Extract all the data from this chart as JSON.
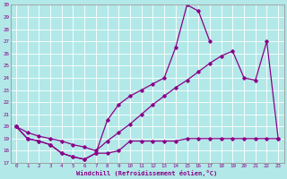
{
  "xlabel": "Windchill (Refroidissement éolien,°C)",
  "bg_color": "#b2e8e8",
  "line_color": "#880088",
  "grid_color": "#aaaaaa",
  "xlim": [
    -0.5,
    23.5
  ],
  "ylim": [
    17,
    30
  ],
  "xticks": [
    0,
    1,
    2,
    3,
    4,
    5,
    6,
    7,
    8,
    9,
    10,
    11,
    12,
    13,
    14,
    15,
    16,
    17,
    18,
    19,
    20,
    21,
    22,
    23
  ],
  "yticks": [
    17,
    18,
    19,
    20,
    21,
    22,
    23,
    24,
    25,
    26,
    27,
    28,
    29,
    30
  ],
  "line1_x": [
    0,
    1,
    2,
    3,
    4,
    5,
    6,
    7,
    8,
    9,
    10,
    11,
    12,
    13,
    14,
    15,
    16,
    17,
    18,
    19,
    20,
    21,
    22,
    23
  ],
  "line1_y": [
    20,
    19,
    18.8,
    18.5,
    17.8,
    17.5,
    17.3,
    17.8,
    17.8,
    18.0,
    18.8,
    18.8,
    18.8,
    18.8,
    18.8,
    19.0,
    19.0,
    19.0,
    19.0,
    19.0,
    19.0,
    19.0,
    19.0,
    19.0
  ],
  "line2_x": [
    0,
    1,
    2,
    3,
    4,
    5,
    6,
    7,
    8,
    9,
    10,
    11,
    12,
    13,
    14,
    15,
    16,
    17,
    18,
    19,
    20,
    21,
    22,
    23
  ],
  "line2_y": [
    20,
    19,
    18.8,
    18.5,
    17.8,
    17.5,
    17.3,
    17.8,
    20.5,
    21.8,
    22.5,
    23.0,
    23.5,
    24.0,
    26.5,
    30.0,
    29.5,
    27.0,
    null,
    null,
    null,
    null,
    null,
    null
  ],
  "line3_x": [
    0,
    1,
    2,
    3,
    4,
    5,
    6,
    7,
    8,
    9,
    10,
    11,
    12,
    13,
    14,
    15,
    16,
    17,
    18,
    19,
    20,
    21,
    22,
    23
  ],
  "line3_y": [
    20,
    19.5,
    19.2,
    19.0,
    18.8,
    18.5,
    18.3,
    18.0,
    18.8,
    19.5,
    20.2,
    21.0,
    21.8,
    22.5,
    23.2,
    23.8,
    24.5,
    25.2,
    25.8,
    26.2,
    24.0,
    23.8,
    27.0,
    19.0
  ]
}
